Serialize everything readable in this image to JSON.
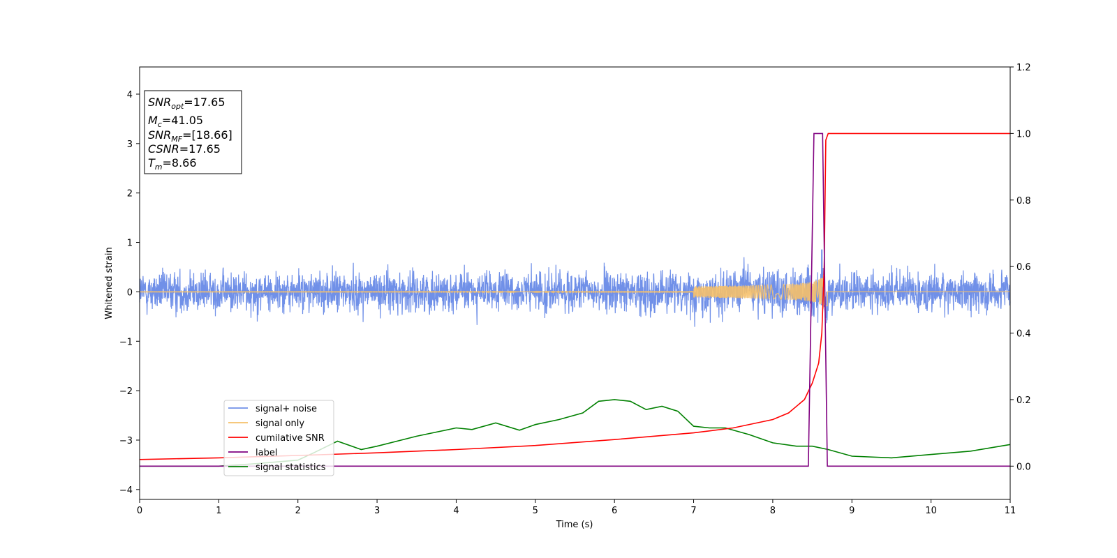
{
  "chart_data": {
    "type": "line",
    "xlabel": "Time (s)",
    "ylabel": "Whitened strain",
    "xlim": [
      0,
      11
    ],
    "ylim_left": [
      -4.2,
      4.55
    ],
    "ylim_right": [
      -0.1,
      1.2
    ],
    "xticks": [
      "0",
      "1",
      "2",
      "3",
      "4",
      "5",
      "6",
      "7",
      "8",
      "9",
      "10",
      "11"
    ],
    "yticks_left": [
      "−4",
      "−3",
      "−2",
      "−1",
      "0",
      "1",
      "2",
      "3",
      "4"
    ],
    "yticks_right": [
      "0.0",
      "0.2",
      "0.4",
      "0.6",
      "0.8",
      "1.0",
      "1.2"
    ],
    "grid": false,
    "legend_position": "lower-left",
    "colors": {
      "signal_noise": "#7090e8",
      "signal_only": "#f5c06a",
      "cumulative_snr": "#ff0000",
      "label": "#800080",
      "signal_statistics": "#008000"
    },
    "series": [
      {
        "name": "signal+ noise",
        "axis": "left",
        "description_kind": "noise",
        "amplitude_std": 0.2,
        "peak_x": 8.62,
        "peak_y": 0.85
      },
      {
        "name": "signal only",
        "axis": "left",
        "chirp_merger_time": 8.66,
        "peak_amplitude": 0.35
      },
      {
        "name": "cumilative SNR",
        "axis": "right",
        "x": [
          0,
          1,
          2,
          3,
          4,
          5,
          6,
          7,
          7.5,
          8,
          8.2,
          8.4,
          8.5,
          8.58,
          8.62,
          8.65,
          8.67,
          8.7,
          11
        ],
        "y": [
          0.02,
          0.025,
          0.032,
          0.04,
          0.05,
          0.062,
          0.08,
          0.1,
          0.115,
          0.14,
          0.16,
          0.2,
          0.25,
          0.31,
          0.4,
          0.6,
          0.98,
          1.0,
          1.0
        ]
      },
      {
        "name": "label",
        "axis": "right",
        "x": [
          0,
          8.45,
          8.52,
          8.63,
          8.69,
          11
        ],
        "y": [
          0.0,
          0.0,
          1.0,
          1.0,
          0.0,
          0.0
        ]
      },
      {
        "name": "signal statistics",
        "axis": "right",
        "x": [
          0,
          1,
          1.5,
          2,
          2.2,
          2.5,
          2.8,
          3.0,
          3.5,
          4.0,
          4.2,
          4.5,
          4.8,
          5.0,
          5.3,
          5.6,
          5.8,
          6.0,
          6.2,
          6.4,
          6.6,
          6.8,
          7.0,
          7.2,
          7.4,
          7.7,
          8.0,
          8.3,
          8.5,
          8.7,
          9.0,
          9.5,
          10.0,
          10.5,
          11.0
        ],
        "y": [
          0.0,
          0.0,
          0.008,
          0.018,
          0.04,
          0.075,
          0.05,
          0.06,
          0.09,
          0.115,
          0.11,
          0.13,
          0.108,
          0.125,
          0.14,
          0.16,
          0.195,
          0.2,
          0.195,
          0.17,
          0.18,
          0.165,
          0.12,
          0.115,
          0.115,
          0.095,
          0.07,
          0.06,
          0.06,
          0.05,
          0.03,
          0.025,
          0.035,
          0.045,
          0.065
        ]
      }
    ]
  },
  "info_box": {
    "snr_opt_base": "SNR",
    "snr_opt_sub": "opt",
    "snr_opt_value": "=17.65",
    "mc_base": "M",
    "mc_sub": "c",
    "mc_value": "=41.05",
    "snr_mf_base": "SNR",
    "snr_mf_sub": "MF",
    "snr_mf_value": "=[18.66]",
    "csnr_base": "CSNR",
    "csnr_value": "=17.65",
    "tm_base": "T",
    "tm_sub": "m",
    "tm_value": "=8.66"
  },
  "legend": {
    "items": [
      "signal+ noise",
      "signal only",
      "cumilative SNR",
      "label",
      "signal statistics"
    ]
  }
}
